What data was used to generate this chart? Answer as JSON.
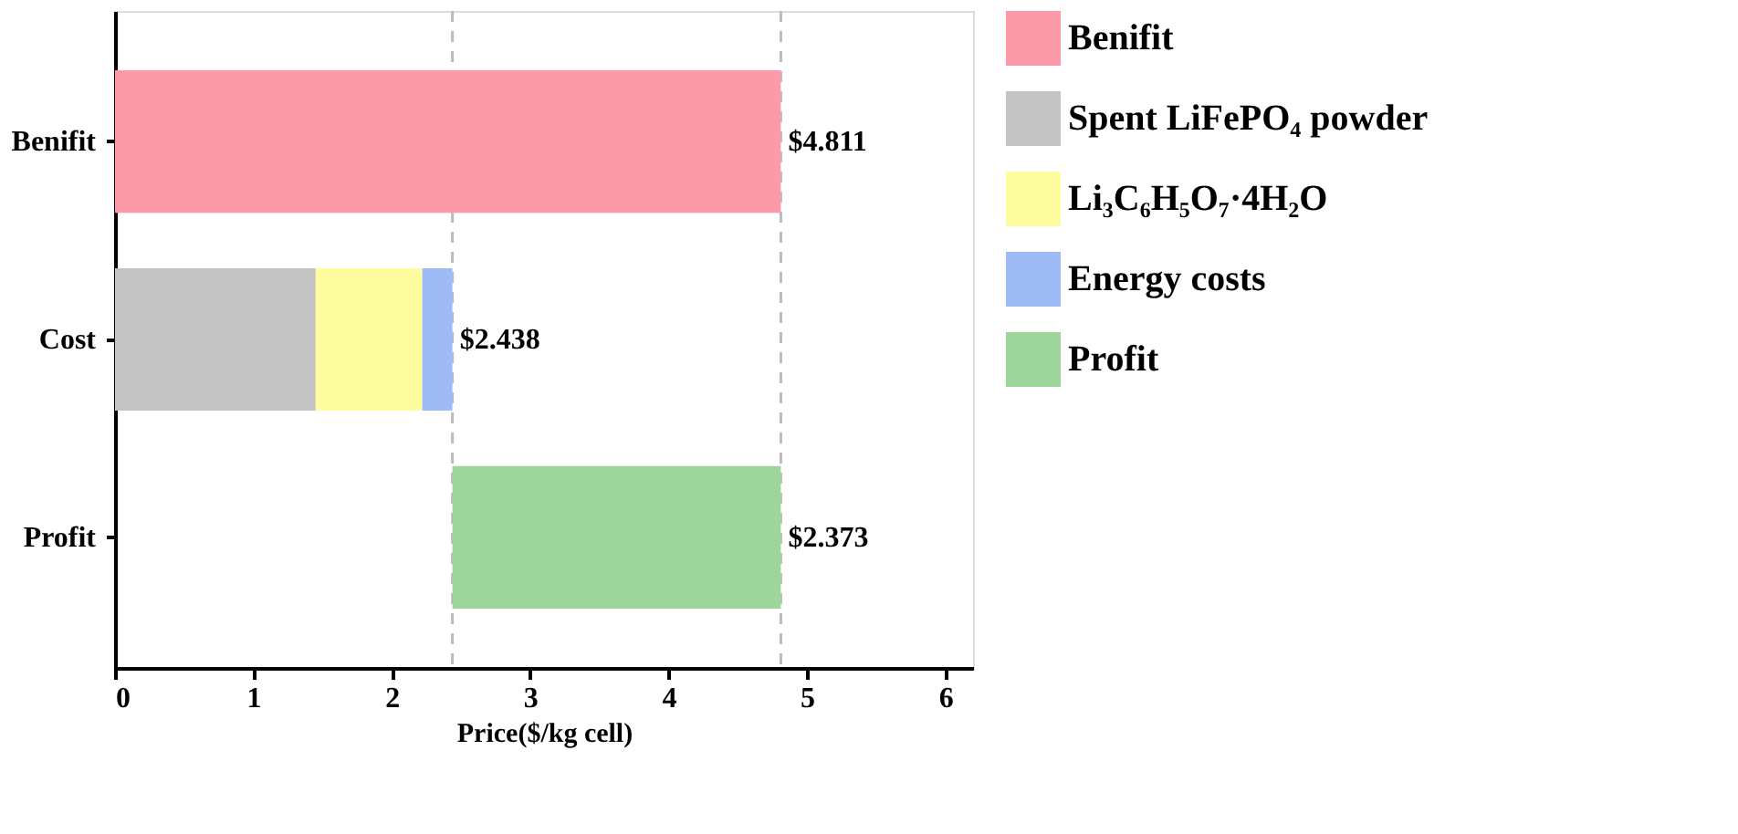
{
  "chart_data": {
    "type": "bar",
    "orientation": "horizontal",
    "stacked": true,
    "categories": [
      "Benifit",
      "Cost",
      "Profit"
    ],
    "series": [
      {
        "name": "Benifit",
        "color": "#fd9aa9",
        "values": [
          4.811,
          null,
          null
        ]
      },
      {
        "name": "Spent LiFePO₄ powder",
        "color": "#c3c3c3",
        "values": [
          null,
          1.45,
          null
        ]
      },
      {
        "name": "Li₃C₆H₅O₇·4H₂O",
        "color": "#fdfc9f",
        "values": [
          null,
          0.77,
          null
        ]
      },
      {
        "name": "Energy costs",
        "color": "#9ebbf5",
        "values": [
          null,
          0.218,
          null
        ]
      },
      {
        "name": "Profit",
        "color": "#9dd59b",
        "values": [
          null,
          null,
          2.373
        ],
        "base": [
          null,
          null,
          2.438
        ]
      }
    ],
    "totals": [
      "$4.811",
      "$2.438",
      "$2.373"
    ],
    "xlabel": "Price($/kg cell)",
    "xlim": [
      0,
      6.2
    ],
    "xticks": [
      0,
      1,
      2,
      3,
      4,
      5,
      6
    ],
    "ref_lines": [
      {
        "axis": "x",
        "value": 4.811,
        "label": null,
        "color": "#bbbbbb",
        "line_style": "dashed"
      },
      {
        "axis": "x",
        "value": 2.438,
        "label": null,
        "color": "#bbbbbb",
        "line_style": "dashed"
      }
    ],
    "grid": false,
    "legend": "right"
  }
}
